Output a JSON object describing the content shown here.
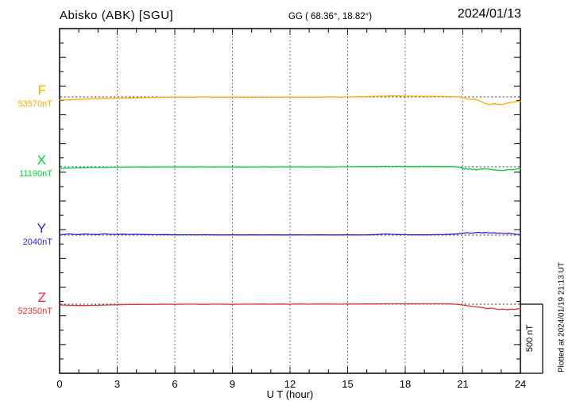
{
  "header": {
    "station": "Abisko (ABK)  [SGU]",
    "geographic": "GG ( 68.36°,  18.82°)",
    "date": "2024/01/13"
  },
  "axes": {
    "x_label": "U T (hour)",
    "x_tick_hours": [
      0,
      3,
      6,
      9,
      12,
      15,
      18,
      21,
      24
    ]
  },
  "scale_bar": {
    "label": "500 nT"
  },
  "plotted_note": "Plotted at 2024/01/19 21:13 UT",
  "chart_data": {
    "type": "line",
    "title": "Abisko (ABK) [SGU] magnetogram",
    "x_label": "U T (hour)",
    "x_range": [
      0,
      24
    ],
    "x_tick_hours": [
      0,
      3,
      6,
      9,
      12,
      15,
      18,
      21,
      24
    ],
    "units": "nT",
    "scale_bar_nT": 500,
    "grid": "dotted vertical every 3 h, dotted baseline per trace",
    "points_format": "[hour_UT, delta_nT_from_base_value]",
    "series": [
      {
        "name": "F",
        "base_label": "53570nT",
        "base_value_nT": 53570,
        "color": "#FFAA00",
        "points": [
          [
            0,
            -23
          ],
          [
            0.5,
            -21
          ],
          [
            1,
            -17
          ],
          [
            1.5,
            -15
          ],
          [
            2,
            -12
          ],
          [
            2.5,
            -11
          ],
          [
            3,
            -9
          ],
          [
            3.5,
            -8
          ],
          [
            4,
            -7
          ],
          [
            4.5,
            -5
          ],
          [
            5,
            -4
          ],
          [
            5.5,
            -2
          ],
          [
            6,
            -2
          ],
          [
            6.5,
            -1
          ],
          [
            7,
            -2
          ],
          [
            7.5,
            0
          ],
          [
            8,
            -1
          ],
          [
            8.5,
            -2
          ],
          [
            9,
            -1
          ],
          [
            9.5,
            -3
          ],
          [
            10,
            -2
          ],
          [
            10.5,
            -3
          ],
          [
            11,
            -2
          ],
          [
            11.5,
            -1
          ],
          [
            12,
            -2
          ],
          [
            12.5,
            -1
          ],
          [
            13,
            -2
          ],
          [
            13.5,
            -1
          ],
          [
            14,
            0
          ],
          [
            14.5,
            -1
          ],
          [
            15,
            0
          ],
          [
            15.5,
            1
          ],
          [
            16,
            3
          ],
          [
            16.5,
            5
          ],
          [
            17,
            6
          ],
          [
            17.3,
            8
          ],
          [
            17.6,
            7
          ],
          [
            18,
            6
          ],
          [
            18.5,
            5
          ],
          [
            19,
            4
          ],
          [
            19.5,
            4
          ],
          [
            20,
            3
          ],
          [
            20.5,
            2
          ],
          [
            20.8,
            0
          ],
          [
            21,
            -6
          ],
          [
            21.2,
            -14
          ],
          [
            21.4,
            -18
          ],
          [
            21.6,
            -16
          ],
          [
            21.8,
            -24
          ],
          [
            22,
            -36
          ],
          [
            22.2,
            -48
          ],
          [
            22.4,
            -55
          ],
          [
            22.6,
            -50
          ],
          [
            22.8,
            -53
          ],
          [
            23,
            -57
          ],
          [
            23.2,
            -50
          ],
          [
            23.4,
            -42
          ],
          [
            23.6,
            -38
          ],
          [
            23.8,
            -34
          ],
          [
            24,
            -30
          ]
        ]
      },
      {
        "name": "X",
        "base_label": "11190nT",
        "base_value_nT": 11190,
        "color": "#00D238",
        "points": [
          [
            0,
            -12
          ],
          [
            0.3,
            -10
          ],
          [
            0.6,
            -9
          ],
          [
            1,
            -8
          ],
          [
            1.5,
            -6
          ],
          [
            2,
            -5
          ],
          [
            2.5,
            -4
          ],
          [
            3,
            -3
          ],
          [
            3.5,
            -2
          ],
          [
            4,
            -1
          ],
          [
            4.5,
            -2
          ],
          [
            5,
            -1
          ],
          [
            5.5,
            0
          ],
          [
            6,
            -1
          ],
          [
            6.5,
            0
          ],
          [
            7,
            -1
          ],
          [
            7.5,
            0
          ],
          [
            8,
            -1
          ],
          [
            8.5,
            0
          ],
          [
            9,
            -1
          ],
          [
            9.5,
            -2
          ],
          [
            10,
            -1
          ],
          [
            10.5,
            0
          ],
          [
            11,
            -1
          ],
          [
            11.5,
            0
          ],
          [
            12,
            -1
          ],
          [
            12.5,
            0
          ],
          [
            13,
            -1
          ],
          [
            13.5,
            0
          ],
          [
            14,
            -1
          ],
          [
            14.5,
            0
          ],
          [
            15,
            0
          ],
          [
            15.5,
            1
          ],
          [
            16,
            2
          ],
          [
            16.5,
            2
          ],
          [
            17,
            3
          ],
          [
            17.5,
            3
          ],
          [
            18,
            2
          ],
          [
            18.5,
            2
          ],
          [
            19,
            3
          ],
          [
            19.5,
            2
          ],
          [
            20,
            2
          ],
          [
            20.5,
            1
          ],
          [
            20.8,
            -2
          ],
          [
            21,
            -10
          ],
          [
            21.1,
            -18
          ],
          [
            21.2,
            -12
          ],
          [
            21.3,
            -20
          ],
          [
            21.4,
            -14
          ],
          [
            21.5,
            -22
          ],
          [
            21.6,
            -16
          ],
          [
            21.7,
            -24
          ],
          [
            21.8,
            -18
          ],
          [
            22,
            -16
          ],
          [
            22.2,
            -14
          ],
          [
            22.4,
            -18
          ],
          [
            22.6,
            -22
          ],
          [
            22.8,
            -24
          ],
          [
            23,
            -27
          ],
          [
            23.2,
            -24
          ],
          [
            23.4,
            -20
          ],
          [
            23.6,
            -22
          ],
          [
            23.8,
            -16
          ],
          [
            24,
            -12
          ]
        ]
      },
      {
        "name": "Y",
        "base_label": "2040nT",
        "base_value_nT": 2040,
        "color": "#2626D8",
        "points": [
          [
            0,
            2
          ],
          [
            0.3,
            6
          ],
          [
            0.5,
            9
          ],
          [
            0.7,
            5
          ],
          [
            1,
            4
          ],
          [
            1.3,
            8
          ],
          [
            1.6,
            6
          ],
          [
            2,
            4
          ],
          [
            2.3,
            9
          ],
          [
            2.6,
            6
          ],
          [
            3,
            5
          ],
          [
            3.3,
            7
          ],
          [
            3.6,
            5
          ],
          [
            4,
            6
          ],
          [
            4.5,
            4
          ],
          [
            5,
            3
          ],
          [
            5.5,
            4
          ],
          [
            6,
            2
          ],
          [
            6.5,
            3
          ],
          [
            7,
            2
          ],
          [
            7.5,
            3
          ],
          [
            8,
            2
          ],
          [
            8.5,
            1
          ],
          [
            9,
            2
          ],
          [
            9.5,
            1
          ],
          [
            10,
            2
          ],
          [
            10.5,
            1
          ],
          [
            11,
            2
          ],
          [
            11.5,
            1
          ],
          [
            12,
            1
          ],
          [
            12.5,
            2
          ],
          [
            13,
            1
          ],
          [
            13.5,
            2
          ],
          [
            14,
            1
          ],
          [
            14.5,
            1
          ],
          [
            15,
            2
          ],
          [
            15.5,
            1
          ],
          [
            16,
            2
          ],
          [
            16.5,
            4
          ],
          [
            17,
            8
          ],
          [
            17.3,
            6
          ],
          [
            17.6,
            4
          ],
          [
            18,
            3
          ],
          [
            18.5,
            2
          ],
          [
            19,
            2
          ],
          [
            19.5,
            3
          ],
          [
            20,
            4
          ],
          [
            20.5,
            7
          ],
          [
            20.8,
            10
          ],
          [
            21,
            14
          ],
          [
            21.2,
            18
          ],
          [
            21.4,
            14
          ],
          [
            21.6,
            16
          ],
          [
            21.8,
            20
          ],
          [
            22,
            16
          ],
          [
            22.2,
            19
          ],
          [
            22.4,
            15
          ],
          [
            22.6,
            17
          ],
          [
            22.8,
            13
          ],
          [
            23,
            15
          ],
          [
            23.2,
            11
          ],
          [
            23.4,
            13
          ],
          [
            23.6,
            9
          ],
          [
            23.8,
            6
          ],
          [
            24,
            3
          ]
        ]
      },
      {
        "name": "Z",
        "base_label": "52350nT",
        "base_value_nT": 52350,
        "color": "#E53030",
        "points": [
          [
            0,
            -6
          ],
          [
            0.5,
            -8
          ],
          [
            1,
            -10
          ],
          [
            1.5,
            -9
          ],
          [
            2,
            -8
          ],
          [
            2.5,
            -6
          ],
          [
            3,
            -4
          ],
          [
            3.5,
            -3
          ],
          [
            4,
            -2
          ],
          [
            4.5,
            -1
          ],
          [
            5,
            -1
          ],
          [
            5.5,
            0
          ],
          [
            6,
            -1
          ],
          [
            6.5,
            0
          ],
          [
            7,
            0
          ],
          [
            7.5,
            -1
          ],
          [
            8,
            0
          ],
          [
            8.5,
            0
          ],
          [
            9,
            -1
          ],
          [
            9.5,
            0
          ],
          [
            10,
            0
          ],
          [
            10.5,
            1
          ],
          [
            11,
            0
          ],
          [
            11.5,
            1
          ],
          [
            12,
            0
          ],
          [
            12.5,
            1
          ],
          [
            13,
            0
          ],
          [
            13.5,
            1
          ],
          [
            14,
            1
          ],
          [
            14.5,
            0
          ],
          [
            15,
            1
          ],
          [
            15.5,
            1
          ],
          [
            16,
            2
          ],
          [
            16.5,
            2
          ],
          [
            17,
            3
          ],
          [
            17.5,
            3
          ],
          [
            18,
            3
          ],
          [
            18.5,
            2
          ],
          [
            19,
            3
          ],
          [
            19.5,
            3
          ],
          [
            20,
            3
          ],
          [
            20.3,
            2
          ],
          [
            20.6,
            0
          ],
          [
            21,
            -6
          ],
          [
            21.3,
            -12
          ],
          [
            21.6,
            -17
          ],
          [
            21.9,
            -22
          ],
          [
            22.1,
            -27
          ],
          [
            22.3,
            -33
          ],
          [
            22.5,
            -28
          ],
          [
            22.7,
            -34
          ],
          [
            22.9,
            -38
          ],
          [
            23.1,
            -35
          ],
          [
            23.3,
            -40
          ],
          [
            23.5,
            -36
          ],
          [
            23.7,
            -38
          ],
          [
            24,
            -31
          ]
        ]
      }
    ]
  }
}
